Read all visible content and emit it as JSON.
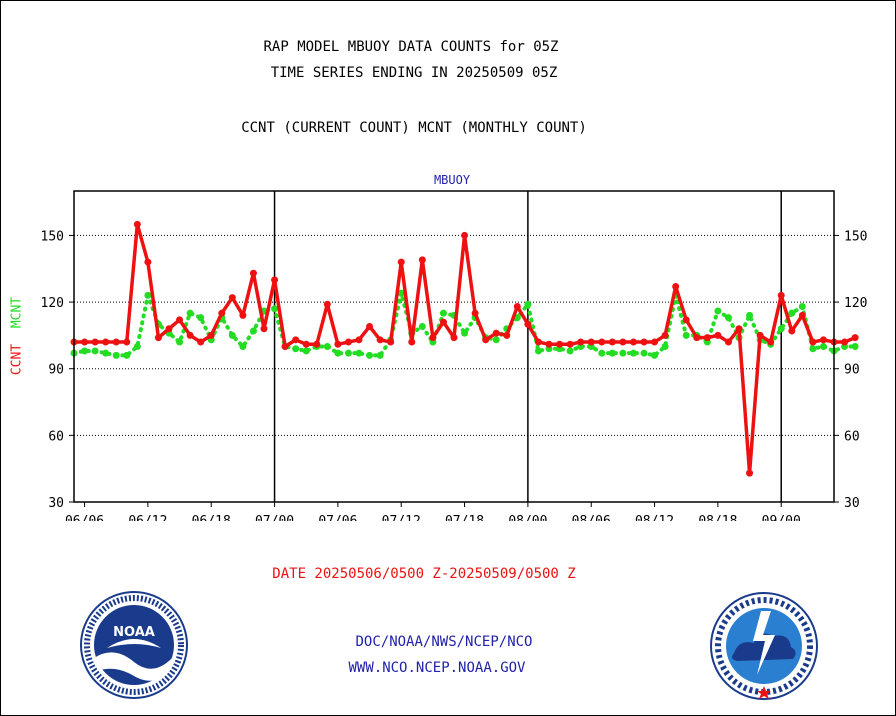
{
  "colors": {
    "ccnt": "#ee1111",
    "mcnt": "#22dd22",
    "panel_label": "#2222aa",
    "footer": "#2222aa"
  },
  "header": {
    "title_line1": "RAP MODEL MBUOY DATA COUNTS for 05Z",
    "title_line2": "TIME SERIES ENDING IN 20250509 05Z",
    "subtitle": "CCNT (CURRENT COUNT) MCNT (MONTHLY COUNT)"
  },
  "footer": {
    "date_range": "DATE 20250506/0500 Z-20250509/0500 Z",
    "org": "DOC/NOAA/NWS/NCEP/NCO",
    "website": "WWW.NCO.NCEP.NOAA.GOV"
  },
  "logos": {
    "noaa_text": "NOAA",
    "noaa_icon": "noaa-seal-icon",
    "nws_icon": "nws-seal-icon"
  },
  "chart_data": {
    "type": "line",
    "panel_label": "MBUOY",
    "ylabel_ccnt": "CCNT",
    "ylabel_mcnt": "MCNT",
    "x_tick_labels": [
      "06/06",
      "06/12",
      "06/18",
      "07/00",
      "07/06",
      "07/12",
      "07/18",
      "08/00",
      "08/06",
      "08/12",
      "08/18",
      "09/00"
    ],
    "x_tick_hours": [
      6,
      12,
      18,
      24,
      30,
      36,
      42,
      48,
      54,
      60,
      66,
      72
    ],
    "x_major_hours": [
      24,
      48,
      72
    ],
    "xlim": [
      5,
      77
    ],
    "y_ticks": [
      30,
      60,
      90,
      120,
      150
    ],
    "ylim": [
      30,
      170
    ],
    "grid": "horizontal dotted at y ticks, vertical solid at day boundaries",
    "series": [
      {
        "name": "CCNT",
        "line_style": "solid",
        "values": [
          102,
          102,
          102,
          102,
          102,
          102,
          155,
          138,
          104,
          108,
          112,
          105,
          102,
          105,
          115,
          122,
          114,
          133,
          108,
          130,
          100,
          103,
          101,
          101,
          119,
          101,
          102,
          103,
          109,
          103,
          102,
          138,
          102,
          139,
          104,
          111,
          104,
          150,
          115,
          103,
          106,
          105,
          118,
          110,
          102,
          101,
          101,
          101,
          102,
          102,
          102,
          102,
          102,
          102,
          102,
          102,
          105,
          127,
          112,
          104,
          104,
          105,
          102,
          108,
          43,
          105,
          102,
          123,
          107,
          114,
          102,
          103,
          102,
          102,
          104
        ]
      },
      {
        "name": "MCNT",
        "line_style": "dotted",
        "values": [
          97,
          98,
          98,
          97,
          96,
          96,
          100,
          123,
          110,
          106,
          102,
          115,
          113,
          103,
          113,
          105,
          100,
          107,
          116,
          117,
          100,
          99,
          98,
          100,
          100,
          97,
          97,
          97,
          96,
          96,
          103,
          124,
          106,
          109,
          102,
          115,
          114,
          106,
          113,
          104,
          103,
          108,
          113,
          119,
          98,
          99,
          99,
          98,
          100,
          100,
          97,
          97,
          97,
          97,
          97,
          96,
          100,
          123,
          105,
          105,
          102,
          116,
          113,
          104,
          114,
          103,
          101,
          108,
          115,
          118,
          99,
          100,
          98,
          100,
          100
        ]
      }
    ]
  }
}
